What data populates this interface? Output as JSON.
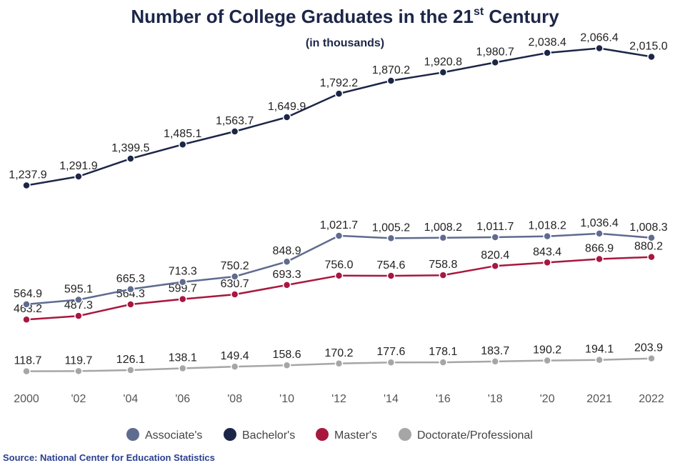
{
  "chart_data": {
    "type": "line",
    "title": "Number of College Graduates in the 21",
    "title_superscript": "st",
    "title_suffix": " Century",
    "subtitle": "(in thousands)",
    "source": "Source: National Center for Education Statistics",
    "categories": [
      "2000",
      "'02",
      "'04",
      "'06",
      "'08",
      "'10",
      "'12",
      "'14",
      "'16",
      "'18",
      "'20",
      "2021",
      "2022"
    ],
    "ylim": [
      0,
      2200
    ],
    "grid": false,
    "legend_position": "bottom-center",
    "series": [
      {
        "name": "Associate's",
        "color": "#5f6b8f",
        "values": [
          564.9,
          595.1,
          665.3,
          713.3,
          750.2,
          848.9,
          1021.7,
          1005.2,
          1008.2,
          1011.7,
          1018.2,
          1036.4,
          1008.3
        ],
        "labels": [
          "564.9",
          "595.1",
          "665.3",
          "713.3",
          "750.2",
          "848.9",
          "1,021.7",
          "1,005.2",
          "1,008.2",
          "1,011.7",
          "1,018.2",
          "1,036.4",
          "1,008.3"
        ]
      },
      {
        "name": "Bachelor's",
        "color": "#1c2648",
        "values": [
          1237.9,
          1291.9,
          1399.5,
          1485.1,
          1563.7,
          1649.9,
          1792.2,
          1870.2,
          1920.8,
          1980.7,
          2038.4,
          2066.4,
          2015.0
        ],
        "labels": [
          "1,237.9",
          "1,291.9",
          "1,399.5",
          "1,485.1",
          "1,563.7",
          "1,649.9",
          "1,792.2",
          "1,870.2",
          "1,920.8",
          "1,980.7",
          "2,038.4",
          "2,066.4",
          "2,015.0"
        ]
      },
      {
        "name": "Master's",
        "color": "#a8173f",
        "values": [
          463.2,
          487.3,
          564.3,
          599.7,
          630.7,
          693.3,
          756.0,
          754.6,
          758.8,
          820.4,
          843.4,
          866.9,
          880.2
        ],
        "labels": [
          "463.2",
          "487.3",
          "564.3",
          "599.7",
          "630.7",
          "693.3",
          "756.0",
          "754.6",
          "758.8",
          "820.4",
          "843.4",
          "866.9",
          "880.2"
        ]
      },
      {
        "name": "Doctorate/Professional",
        "color": "#a6a6a6",
        "values": [
          118.7,
          119.7,
          126.1,
          138.1,
          149.4,
          158.6,
          170.2,
          177.6,
          178.1,
          183.7,
          190.2,
          194.1,
          203.9
        ],
        "labels": [
          "118.7",
          "119.7",
          "126.1",
          "138.1",
          "149.4",
          "158.6",
          "170.2",
          "177.6",
          "178.1",
          "183.7",
          "190.2",
          "194.1",
          "203.9"
        ]
      }
    ]
  }
}
